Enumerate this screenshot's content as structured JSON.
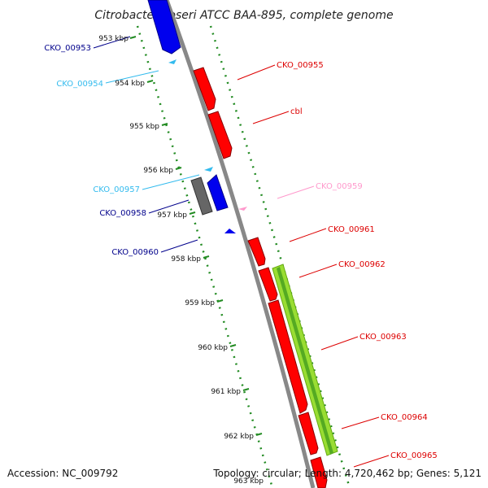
{
  "title": "Citrobacter koseri ATCC BAA-895, complete genome",
  "footer": {
    "accession": "Accession: NC_009792",
    "topology": "Topology: circular; Length: 4,720,462 bp; Genes: 5,121"
  },
  "ticks": [
    "953 kbp",
    "954 kbp",
    "955 kbp",
    "956 kbp",
    "957 kbp",
    "958 kbp",
    "959 kbp",
    "960 kbp",
    "961 kbp",
    "962 kbp",
    "963 kbp"
  ],
  "gene_labels": [
    {
      "id": "CKO_00953",
      "color": "#00008b"
    },
    {
      "id": "CKO_00954",
      "color": "#33bbee"
    },
    {
      "id": "CKO_00955",
      "color": "#dd0000"
    },
    {
      "id": "cbl",
      "color": "#dd0000"
    },
    {
      "id": "CKO_00957",
      "color": "#33bbee"
    },
    {
      "id": "CKO_00958",
      "color": "#00008b"
    },
    {
      "id": "CKO_00959",
      "color": "#ff99cc"
    },
    {
      "id": "CKO_00960",
      "color": "#00008b"
    },
    {
      "id": "CKO_00961",
      "color": "#dd0000"
    },
    {
      "id": "CKO_00962",
      "color": "#dd0000"
    },
    {
      "id": "CKO_00963",
      "color": "#dd0000"
    },
    {
      "id": "CKO_00964",
      "color": "#dd0000"
    },
    {
      "id": "CKO_00965",
      "color": "#dd0000"
    }
  ],
  "colors": {
    "forward_cds": "#ff0000",
    "reverse_cds": "#0000ff",
    "trna": "#33bbee",
    "misc": "#ff99cc",
    "pseudo": "#666666",
    "gc_bar": "#99dd33",
    "backbone": "#888888",
    "tick_dots": "#228b22"
  }
}
